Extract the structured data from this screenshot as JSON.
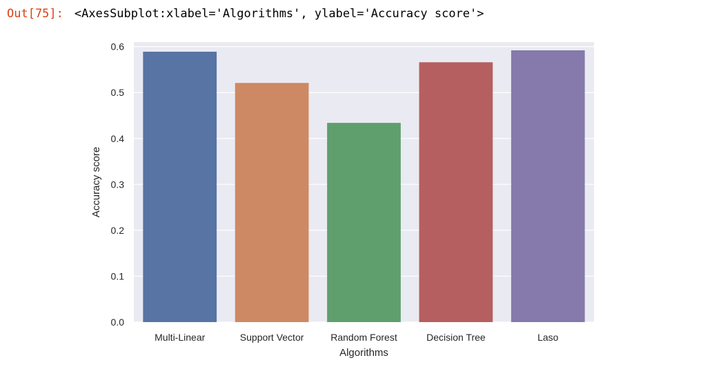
{
  "cell": {
    "prompt": "Out[75]:",
    "repr": "<AxesSubplot:xlabel='Algorithms', ylabel='Accuracy score'>"
  },
  "colors": {
    "plot_bg": "#eaeaf2",
    "grid": "#ffffff",
    "text": "#262626",
    "prompt": "#d84315"
  },
  "chart_data": {
    "type": "bar",
    "categories": [
      "Multi-Linear",
      "Support Vector",
      "Random Forest",
      "Decision Tree",
      "Laso"
    ],
    "values": [
      0.589,
      0.521,
      0.434,
      0.566,
      0.592
    ],
    "colors": [
      "#5874a4",
      "#cd8963",
      "#5f9f6e",
      "#b65f60",
      "#8679ab"
    ],
    "xlabel": "Algorithms",
    "ylabel": "Accuracy score",
    "ylim": [
      0,
      0.61
    ],
    "yticks": [
      0.0,
      0.1,
      0.2,
      0.3,
      0.4,
      0.5,
      0.6
    ],
    "ytick_labels": [
      "0.0",
      "0.1",
      "0.2",
      "0.3",
      "0.4",
      "0.5",
      "0.6"
    ],
    "grid": true,
    "style": "seaborn-darkgrid"
  }
}
